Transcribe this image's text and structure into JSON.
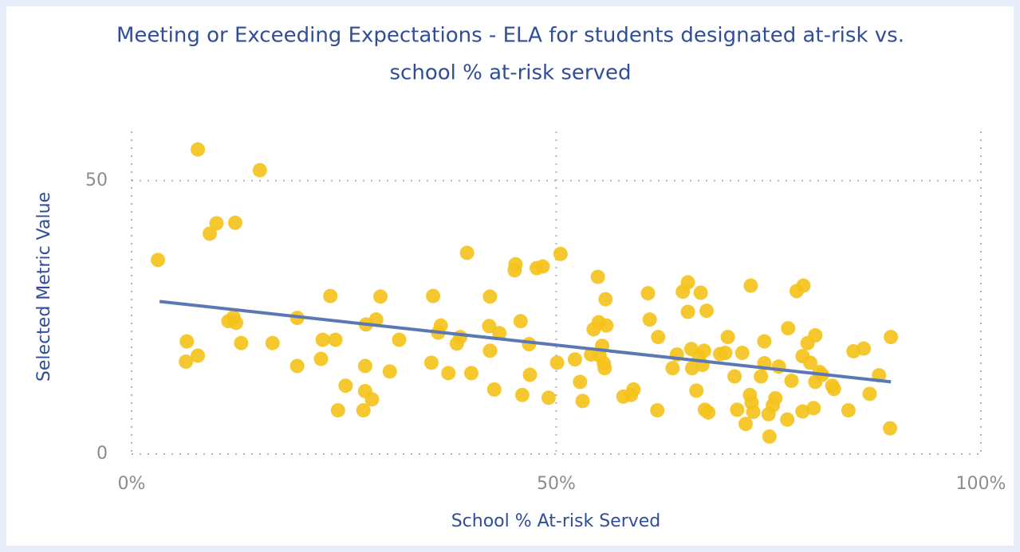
{
  "chart_data": {
    "type": "scatter",
    "title": [
      "Meeting or Exceeding Expectations - ELA for students designated at-risk vs.",
      "school % at-risk served"
    ],
    "x_label": "School % At-risk Served",
    "y_label": "Selected Metric Value",
    "color": "#f5c219",
    "xlim": [
      0,
      100
    ],
    "ylim": [
      0,
      59
    ],
    "xticks": [
      {
        "value": 0,
        "label": "0%"
      },
      {
        "value": 50,
        "label": "50%"
      },
      {
        "value": 100,
        "label": "100%"
      }
    ],
    "yticks": [
      0,
      50
    ],
    "grid": true,
    "x": [
      3.1,
      7.8,
      6.5,
      6.4,
      7.8,
      9.2,
      10.0,
      12.2,
      11.4,
      12.0,
      12.3,
      12.9,
      15.1,
      16.6,
      19.5,
      19.5,
      22.3,
      22.5,
      23.4,
      24.0,
      24.3,
      25.2,
      27.3,
      27.5,
      27.5,
      27.6,
      28.3,
      28.8,
      29.3,
      30.4,
      31.5,
      35.5,
      35.3,
      36.1,
      36.4,
      37.3,
      38.3,
      38.7,
      39.5,
      40.0,
      42.2,
      42.1,
      42.2,
      42.7,
      43.3,
      45.1,
      45.2,
      45.8,
      46.0,
      46.8,
      46.9,
      47.7,
      48.4,
      49.1,
      50.1,
      50.5,
      52.2,
      52.8,
      53.1,
      54.1,
      54.4,
      54.9,
      55.0,
      55.1,
      55.4,
      55.7,
      55.8,
      55.9,
      55.6,
      57.9,
      58.8,
      59.1,
      60.8,
      61.0,
      61.9,
      62.0,
      63.7,
      64.2,
      64.9,
      65.5,
      65.5,
      65.9,
      66.0,
      66.5,
      66.8,
      67.0,
      67.2,
      67.4,
      67.5,
      67.7,
      67.9,
      69.3,
      69.9,
      70.2,
      71.0,
      71.3,
      71.9,
      72.3,
      72.9,
      72.8,
      73.0,
      73.2,
      74.1,
      74.5,
      74.5,
      75.0,
      75.1,
      75.5,
      75.8,
      76.2,
      77.2,
      77.3,
      77.7,
      78.3,
      79.1,
      79.0,
      79.0,
      79.6,
      79.9,
      80.3,
      80.5,
      80.5,
      81.0,
      81.3,
      82.5,
      82.7,
      84.4,
      85.0,
      86.2,
      86.9,
      88.0,
      89.3,
      89.4
    ],
    "values": [
      35.5,
      55.7,
      20.6,
      16.9,
      18.0,
      40.3,
      42.2,
      42.3,
      24.3,
      25.0,
      24.0,
      20.3,
      51.9,
      20.3,
      24.9,
      16.1,
      17.4,
      20.9,
      28.9,
      20.9,
      8.0,
      12.5,
      8.0,
      16.1,
      11.5,
      23.7,
      10.0,
      24.6,
      28.8,
      15.1,
      20.9,
      28.9,
      16.7,
      22.2,
      23.5,
      14.8,
      20.2,
      21.4,
      36.8,
      14.8,
      28.8,
      23.4,
      18.9,
      11.8,
      22.1,
      33.6,
      34.7,
      24.3,
      10.8,
      20.1,
      14.5,
      34.0,
      34.3,
      10.3,
      16.7,
      36.6,
      17.3,
      13.2,
      9.7,
      18.2,
      22.8,
      32.4,
      24.1,
      18.0,
      19.8,
      15.7,
      28.3,
      23.5,
      16.6,
      10.5,
      10.8,
      11.8,
      29.4,
      24.6,
      8.0,
      21.4,
      15.7,
      18.2,
      29.7,
      31.4,
      26.0,
      19.2,
      15.7,
      11.6,
      17.9,
      29.5,
      16.3,
      18.9,
      8.1,
      26.2,
      7.6,
      18.3,
      18.5,
      21.4,
      14.2,
      8.1,
      18.5,
      5.5,
      30.8,
      10.8,
      9.4,
      7.7,
      14.2,
      20.6,
      16.6,
      7.3,
      3.2,
      8.9,
      10.2,
      16.0,
      6.3,
      23.0,
      13.4,
      29.8,
      30.8,
      17.9,
      7.8,
      20.3,
      16.7,
      8.4,
      21.7,
      13.2,
      15.0,
      14.5,
      12.5,
      11.9,
      8.0,
      18.8,
      19.3,
      11.0,
      14.4,
      4.7,
      21.4
    ],
    "trendline": {
      "color": "#5a78b4",
      "x": [
        3.3,
        89.4
      ],
      "values": [
        27.9,
        13.2
      ]
    }
  }
}
